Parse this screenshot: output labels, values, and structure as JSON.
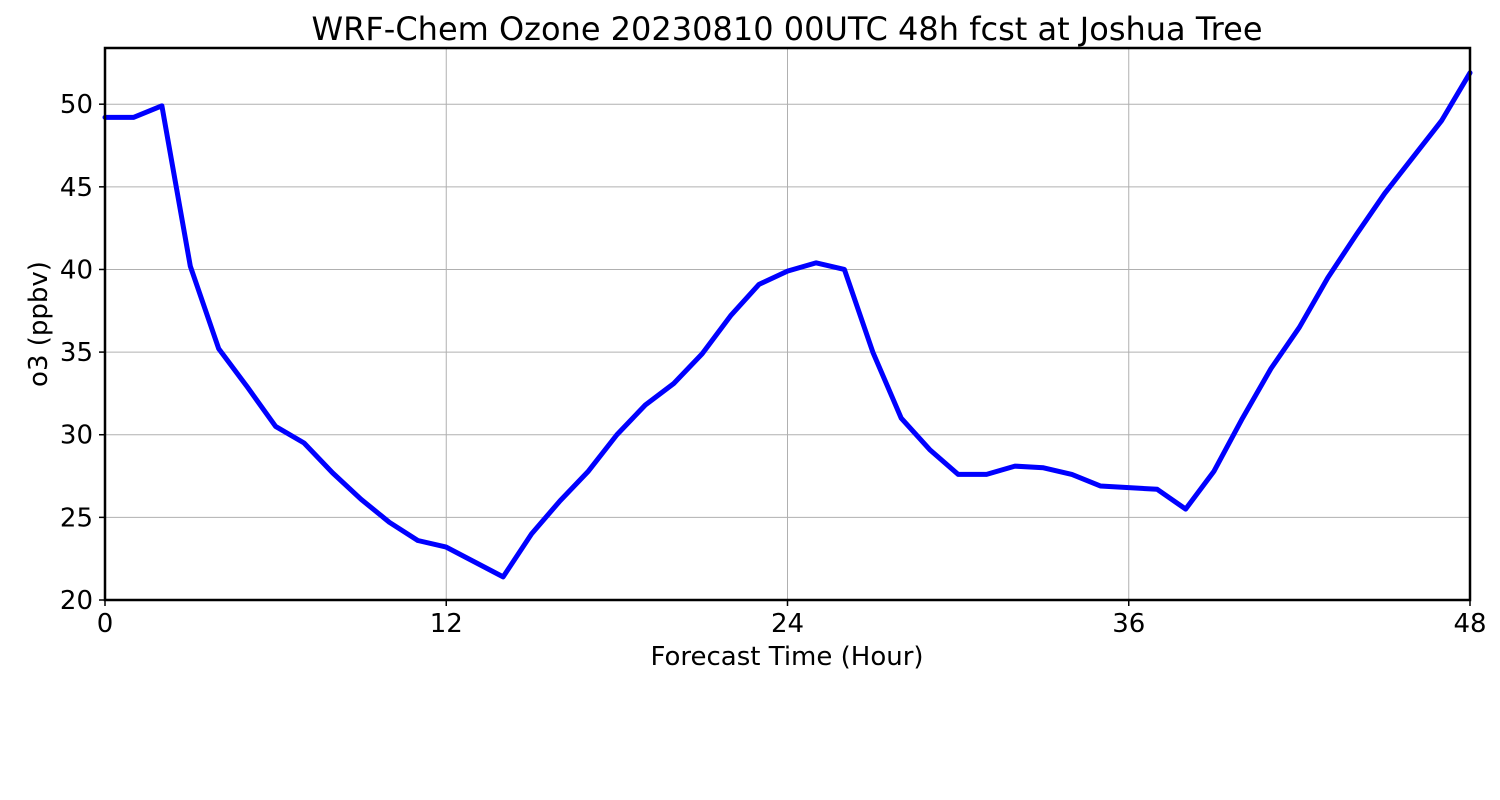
{
  "chart_data": {
    "type": "line",
    "title": "WRF-Chem Ozone  20230810 00UTC 48h fcst at Joshua Tree",
    "xlabel": "Forecast Time (Hour)",
    "ylabel": "o3  (ppbv)",
    "xlim": [
      0,
      48
    ],
    "ylim": [
      20,
      53.4
    ],
    "xticks": [
      0,
      12,
      24,
      36,
      48
    ],
    "yticks": [
      20,
      25,
      30,
      35,
      40,
      45,
      50
    ],
    "grid": true,
    "series": [
      {
        "color": "#0000ff",
        "x": [
          0,
          1,
          2,
          3,
          4,
          5,
          6,
          7,
          8,
          9,
          10,
          11,
          12,
          13,
          14,
          15,
          16,
          17,
          18,
          19,
          20,
          21,
          22,
          23,
          24,
          25,
          26,
          27,
          28,
          29,
          30,
          31,
          32,
          33,
          34,
          35,
          36,
          37,
          38,
          39,
          40,
          41,
          42,
          43,
          44,
          45,
          46,
          47,
          48
        ],
        "values": [
          49.2,
          49.2,
          49.9,
          40.2,
          35.2,
          32.9,
          30.5,
          29.5,
          27.7,
          26.1,
          24.7,
          23.6,
          23.2,
          22.3,
          21.4,
          24.0,
          26.0,
          27.8,
          30.0,
          31.8,
          33.1,
          34.9,
          37.2,
          39.1,
          39.9,
          40.4,
          40.0,
          35.0,
          31.0,
          29.1,
          27.6,
          27.6,
          28.1,
          28.0,
          27.6,
          26.9,
          26.8,
          26.7,
          25.5,
          27.8,
          31.0,
          34.0,
          36.5,
          39.5,
          42.1,
          44.6,
          46.8,
          49.0,
          51.9
        ]
      }
    ]
  }
}
